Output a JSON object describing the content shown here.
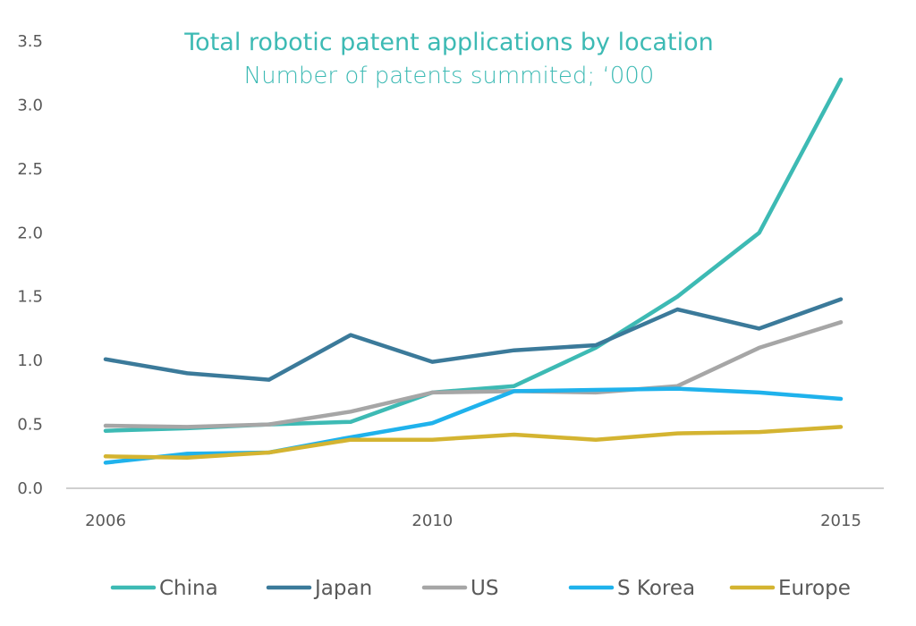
{
  "chart_data": {
    "type": "line",
    "title": "Total robotic patent applications by location",
    "subtitle": "Number of patents summited; ‘000",
    "x": [
      2006,
      2007,
      2008,
      2009,
      2010,
      2011,
      2012,
      2013,
      2014,
      2015
    ],
    "x_tick_labels": [
      "2006",
      "2010",
      "2015"
    ],
    "y_tick_labels": [
      "0.0",
      "0.5",
      "1.0",
      "1.5",
      "2.0",
      "2.5",
      "3.0",
      "3.5"
    ],
    "ylim": [
      0,
      3.5
    ],
    "grid": false,
    "legend_position": "bottom",
    "title_color": "#3dbab4",
    "series": [
      {
        "name": "China",
        "color": "#3dbab4",
        "values": [
          0.45,
          0.47,
          0.5,
          0.52,
          0.75,
          0.8,
          1.1,
          1.5,
          2.0,
          3.2
        ]
      },
      {
        "name": "Japan",
        "color": "#3b7a9a",
        "values": [
          1.01,
          0.9,
          0.85,
          1.2,
          0.99,
          1.08,
          1.12,
          1.4,
          1.25,
          1.48
        ]
      },
      {
        "name": "US",
        "color": "#a6a6a6",
        "values": [
          0.49,
          0.48,
          0.5,
          0.6,
          0.75,
          0.76,
          0.75,
          0.8,
          1.1,
          1.3
        ]
      },
      {
        "name": "S Korea",
        "color": "#1fb2ec",
        "values": [
          0.2,
          0.27,
          0.28,
          0.4,
          0.51,
          0.76,
          0.77,
          0.78,
          0.75,
          0.7
        ]
      },
      {
        "name": "Europe",
        "color": "#d4b431",
        "values": [
          0.25,
          0.24,
          0.28,
          0.38,
          0.38,
          0.42,
          0.38,
          0.43,
          0.44,
          0.48
        ]
      }
    ]
  }
}
